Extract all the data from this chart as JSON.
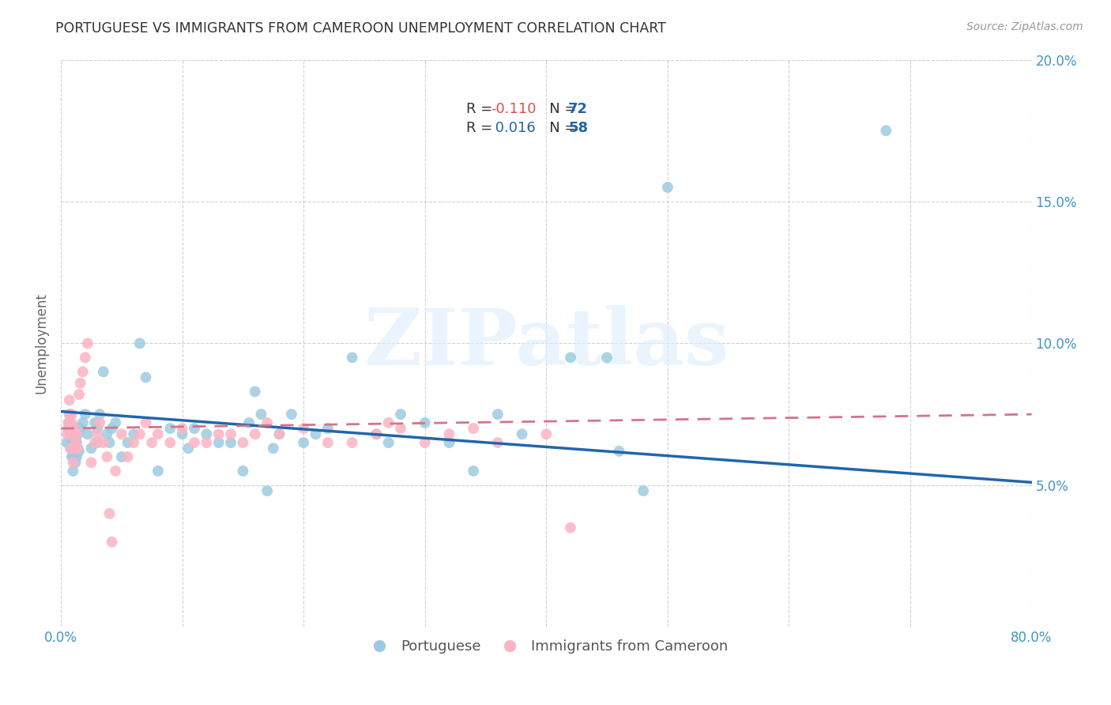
{
  "title": "PORTUGUESE VS IMMIGRANTS FROM CAMEROON UNEMPLOYMENT CORRELATION CHART",
  "source": "Source: ZipAtlas.com",
  "ylabel": "Unemployment",
  "xlim": [
    0.0,
    0.8
  ],
  "ylim": [
    0.0,
    0.2
  ],
  "ytick_positions": [
    0.0,
    0.05,
    0.1,
    0.15,
    0.2
  ],
  "ytick_labels_right": [
    "",
    "5.0%",
    "10.0%",
    "15.0%",
    "20.0%"
  ],
  "xtick_positions": [
    0.0,
    0.1,
    0.2,
    0.3,
    0.4,
    0.5,
    0.6,
    0.7,
    0.8
  ],
  "xtick_labels": [
    "0.0%",
    "",
    "",
    "",
    "",
    "",
    "",
    "",
    "80.0%"
  ],
  "color_blue_scatter": "#9ecae1",
  "color_pink_scatter": "#fbb4c4",
  "color_blue_line": "#2166ac",
  "color_pink_line": "#d4748a",
  "color_axis_text": "#4393c3",
  "color_title": "#333333",
  "color_source": "#999999",
  "color_ylabel": "#666666",
  "color_grid": "#cccccc",
  "watermark_text": "ZIPatlas",
  "watermark_color": "#ddeeff",
  "legend_line1_R": "-0.110",
  "legend_line1_N": "72",
  "legend_line2_R": "0.016",
  "legend_line2_N": "58",
  "port_line_x0": 0.0,
  "port_line_y0": 0.076,
  "port_line_x1": 0.8,
  "port_line_y1": 0.051,
  "cam_line_x0": 0.0,
  "cam_line_y0": 0.07,
  "cam_line_x1": 0.8,
  "cam_line_y1": 0.075,
  "portuguese_x": [
    0.005,
    0.006,
    0.007,
    0.007,
    0.008,
    0.008,
    0.009,
    0.009,
    0.01,
    0.01,
    0.01,
    0.011,
    0.011,
    0.012,
    0.012,
    0.013,
    0.013,
    0.014,
    0.015,
    0.016,
    0.018,
    0.02,
    0.022,
    0.025,
    0.028,
    0.03,
    0.03,
    0.032,
    0.035,
    0.038,
    0.04,
    0.042,
    0.045,
    0.05,
    0.055,
    0.06,
    0.065,
    0.07,
    0.08,
    0.09,
    0.1,
    0.105,
    0.11,
    0.12,
    0.13,
    0.14,
    0.15,
    0.155,
    0.16,
    0.165,
    0.17,
    0.175,
    0.18,
    0.19,
    0.2,
    0.21,
    0.22,
    0.24,
    0.26,
    0.27,
    0.28,
    0.3,
    0.32,
    0.34,
    0.36,
    0.38,
    0.42,
    0.45,
    0.46,
    0.48,
    0.5,
    0.68
  ],
  "portuguese_y": [
    0.065,
    0.07,
    0.072,
    0.075,
    0.063,
    0.068,
    0.06,
    0.065,
    0.055,
    0.06,
    0.068,
    0.063,
    0.07,
    0.058,
    0.065,
    0.06,
    0.065,
    0.068,
    0.062,
    0.07,
    0.072,
    0.075,
    0.068,
    0.063,
    0.072,
    0.065,
    0.07,
    0.075,
    0.09,
    0.068,
    0.065,
    0.07,
    0.072,
    0.06,
    0.065,
    0.068,
    0.1,
    0.088,
    0.055,
    0.07,
    0.068,
    0.063,
    0.07,
    0.068,
    0.065,
    0.065,
    0.055,
    0.072,
    0.083,
    0.075,
    0.048,
    0.063,
    0.068,
    0.075,
    0.065,
    0.068,
    0.07,
    0.095,
    0.068,
    0.065,
    0.075,
    0.072,
    0.065,
    0.055,
    0.075,
    0.068,
    0.095,
    0.095,
    0.062,
    0.048,
    0.155,
    0.175
  ],
  "cameroon_x": [
    0.005,
    0.006,
    0.007,
    0.007,
    0.008,
    0.008,
    0.009,
    0.009,
    0.01,
    0.01,
    0.01,
    0.011,
    0.012,
    0.013,
    0.014,
    0.015,
    0.016,
    0.018,
    0.02,
    0.022,
    0.025,
    0.028,
    0.03,
    0.032,
    0.035,
    0.038,
    0.04,
    0.042,
    0.045,
    0.05,
    0.055,
    0.06,
    0.065,
    0.07,
    0.075,
    0.08,
    0.09,
    0.1,
    0.11,
    0.12,
    0.13,
    0.14,
    0.15,
    0.16,
    0.17,
    0.18,
    0.2,
    0.22,
    0.24,
    0.26,
    0.27,
    0.28,
    0.3,
    0.32,
    0.34,
    0.36,
    0.4,
    0.42
  ],
  "cameroon_y": [
    0.068,
    0.072,
    0.075,
    0.08,
    0.063,
    0.068,
    0.072,
    0.075,
    0.058,
    0.063,
    0.068,
    0.07,
    0.065,
    0.068,
    0.063,
    0.082,
    0.086,
    0.09,
    0.095,
    0.1,
    0.058,
    0.065,
    0.068,
    0.072,
    0.065,
    0.06,
    0.04,
    0.03,
    0.055,
    0.068,
    0.06,
    0.065,
    0.068,
    0.072,
    0.065,
    0.068,
    0.065,
    0.07,
    0.065,
    0.065,
    0.068,
    0.068,
    0.065,
    0.068,
    0.072,
    0.068,
    0.07,
    0.065,
    0.065,
    0.068,
    0.072,
    0.07,
    0.065,
    0.068,
    0.07,
    0.065,
    0.068,
    0.035
  ]
}
